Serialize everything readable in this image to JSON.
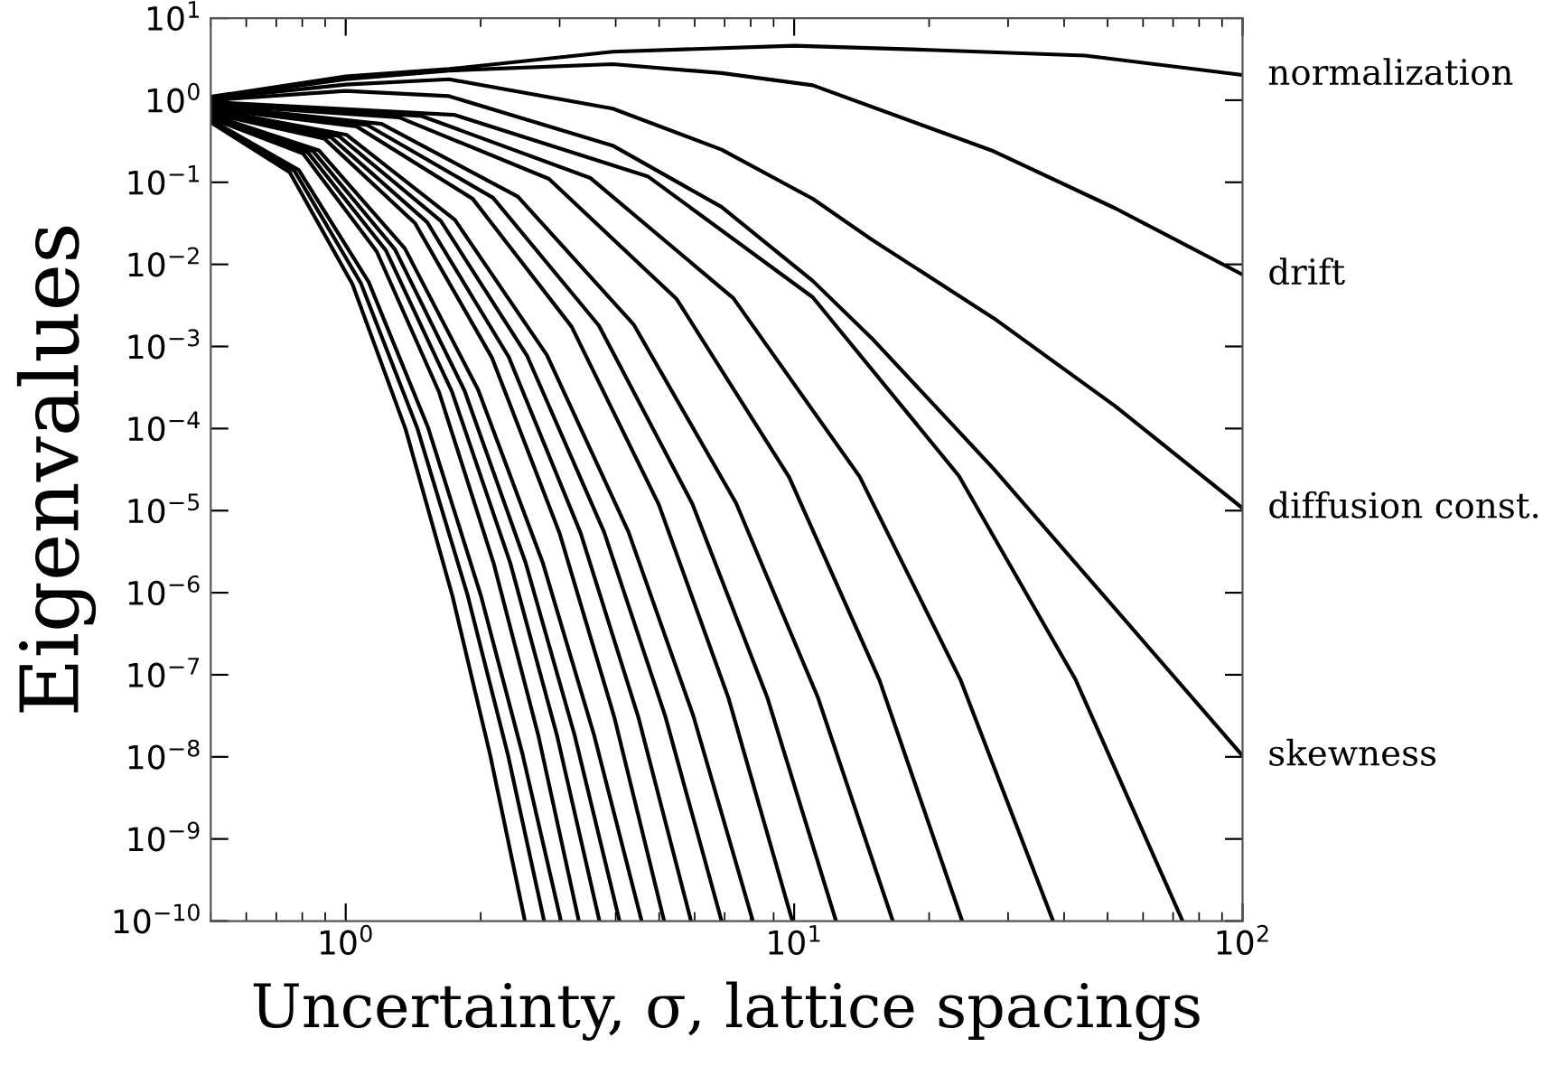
{
  "chart_data": {
    "type": "line",
    "xlabel": "Uncertainty, σ, lattice spacings",
    "ylabel": "Eigenvalues",
    "log": "xy",
    "xlim": [
      0.5,
      100
    ],
    "xticks": [
      {
        "value": 1,
        "label": "10$^{0}$"
      },
      {
        "value": 10,
        "label": "10$^{1}$"
      },
      {
        "value": 100,
        "label": "10$^{2}$"
      }
    ],
    "ylim": [
      1e-10,
      10
    ],
    "yticks": [
      {
        "value": 1e-10,
        "label": "10$^{−10}$"
      },
      {
        "value": 1e-09,
        "label": "10$^{−9}$"
      },
      {
        "value": 1e-08,
        "label": "10$^{−8}$"
      },
      {
        "value": 1e-07,
        "label": "10$^{−7}$"
      },
      {
        "value": 1e-06,
        "label": "10$^{−6}$"
      },
      {
        "value": 1e-05,
        "label": "10$^{−5}$"
      },
      {
        "value": 0.0001,
        "label": "10$^{−4}$"
      },
      {
        "value": 0.001,
        "label": "10$^{−3}$"
      },
      {
        "value": 0.01,
        "label": "10$^{−2}$"
      },
      {
        "value": 0.1,
        "label": "10$^{−1}$"
      },
      {
        "value": 1,
        "label": "10$^{0}$"
      },
      {
        "value": 10,
        "label": "10$^{1}$"
      }
    ],
    "line_style": "solid",
    "marker": "none",
    "legend": "right",
    "series": [
      {
        "name": "normalization",
        "color": "#000000",
        "x": [
          0.5,
          1,
          1.7,
          3.94,
          10,
          20,
          44.5,
          100
        ],
        "values": [
          1.1,
          1.95,
          2.4,
          3.9,
          4.6,
          4.1,
          3.5,
          2.03
        ]
      },
      {
        "name": "drift",
        "color": "#000000",
        "x": [
          0.5,
          1,
          1.7,
          3.94,
          6.89,
          11,
          27.9,
          52.1,
          100
        ],
        "values": [
          1.08,
          1.8,
          2.3,
          2.75,
          2.14,
          1.52,
          0.238,
          0.048,
          0.0075
        ]
      },
      {
        "name": "diffusion const.",
        "color": "#000000",
        "x": [
          0.5,
          1,
          1.7,
          3.94,
          6.89,
          11,
          14.9,
          27.9,
          52.1,
          100
        ],
        "values": [
          1.05,
          1.55,
          1.8,
          0.79,
          0.25,
          0.063,
          0.02,
          0.0022,
          0.000186,
          1.07e-05
        ]
      },
      {
        "name": "skewness",
        "color": "#000000",
        "x": [
          0.5,
          1,
          1.7,
          3.94,
          6.89,
          11,
          14.9,
          27.9,
          52.1,
          100
        ],
        "values": [
          1.0,
          1.3,
          1.12,
          0.28,
          0.05,
          0.0063,
          0.00126,
          3.2e-05,
          6.3e-07,
          1.03e-08
        ]
      },
      {
        "color": "#000000",
        "x": [
          0.5,
          1.744,
          4.73,
          11.0,
          23.3,
          42.4,
          73.5
        ],
        "values": [
          0.95,
          0.664,
          0.117,
          0.00398,
          2.65e-05,
          8.79e-08,
          1e-10
        ]
      },
      {
        "color": "#000000",
        "x": [
          0.5,
          1.477,
          3.51,
          7.32,
          14.0,
          23.5,
          37.8
        ],
        "values": [
          0.917,
          0.641,
          0.113,
          0.00387,
          2.59e-05,
          8.67e-08,
          1e-10
        ]
      },
      {
        "color": "#000000",
        "x": [
          0.5,
          1.314,
          2.84,
          5.47,
          9.75,
          15.5,
          23.7
        ],
        "values": [
          0.885,
          0.619,
          0.11,
          0.00378,
          2.55e-05,
          8.6e-08,
          1e-10
        ]
      },
      {
        "color": "#000000",
        "x": [
          0.5,
          1.202,
          2.42,
          4.39,
          7.42,
          11.3,
          16.6
        ],
        "values": [
          0.853,
          0.515,
          0.067,
          0.00184,
          1.24e-05,
          5.28e-08,
          1e-10
        ]
      },
      {
        "color": "#000000",
        "x": [
          0.5,
          1.118,
          2.13,
          3.67,
          5.93,
          8.72,
          12.4
        ],
        "values": [
          0.824,
          0.498,
          0.0649,
          0.00179,
          1.21e-05,
          5.22e-08,
          1e-10
        ]
      },
      {
        "color": "#000000",
        "x": [
          0.5,
          1.057,
          1.92,
          3.19,
          4.99,
          7.14,
          9.91
        ],
        "values": [
          0.794,
          0.48,
          0.0628,
          0.00174,
          1.19e-05,
          5.18e-08,
          1e-10
        ]
      },
      {
        "color": "#000000",
        "x": [
          0.5,
          1.005,
          1.752,
          2.81,
          4.27,
          5.96,
          8.09
        ],
        "values": [
          0.767,
          0.378,
          0.0348,
          0.000782,
          5.53e-06,
          3.15e-08,
          1e-10
        ]
      },
      {
        "color": "#000000",
        "x": [
          0.5,
          0.965,
          1.63,
          2.54,
          3.77,
          5.16,
          6.89
        ],
        "values": [
          0.741,
          0.365,
          0.0338,
          0.000762,
          5.45e-06,
          3.12e-08,
          1e-10
        ]
      },
      {
        "color": "#000000",
        "x": [
          0.5,
          0.928,
          1.519,
          2.31,
          3.34,
          4.49,
          5.89
        ],
        "values": [
          0.714,
          0.352,
          0.0327,
          0.000743,
          5.35e-06,
          3.09e-08,
          1e-10
        ]
      },
      {
        "color": "#000000",
        "x": [
          0.5,
          0.896,
          1.427,
          2.12,
          3.0,
          3.97,
          5.13
        ],
        "values": [
          0.692,
          0.341,
          0.0318,
          0.000726,
          5.26e-06,
          3.07e-08,
          1e-10
        ]
      },
      {
        "color": "#000000",
        "x": [
          0.5,
          0.871,
          1.355,
          1.974,
          2.75,
          3.58,
          4.57
        ],
        "values": [
          0.665,
          0.245,
          0.0156,
          0.000296,
          2.33e-06,
          1.84e-08,
          1e-10
        ]
      },
      {
        "color": "#000000",
        "x": [
          0.5,
          0.847,
          1.288,
          1.84,
          2.52,
          3.24,
          4.08
        ],
        "values": [
          0.646,
          0.238,
          0.0152,
          0.000291,
          2.3e-06,
          1.83e-08,
          1e-10
        ]
      },
      {
        "color": "#000000",
        "x": [
          0.5,
          0.825,
          1.229,
          1.725,
          2.33,
          2.96,
          3.68
        ],
        "values": [
          0.619,
          0.229,
          0.0148,
          0.000283,
          2.26e-06,
          1.81e-08,
          1e-10
        ]
      },
      {
        "color": "#000000",
        "x": [
          0.5,
          0.804,
          1.172,
          1.615,
          2.14,
          2.69,
          3.31
        ],
        "values": [
          0.603,
          0.223,
          0.0144,
          0.000278,
          2.23e-06,
          1.8e-08,
          1e-10
        ]
      },
      {
        "color": "#000000",
        "x": [
          0.5,
          0.785,
          1.125,
          1.527,
          2.0,
          2.48,
          3.02
        ],
        "values": [
          0.577,
          0.142,
          0.0061,
          0.000102,
          9.4e-07,
          1.07e-08,
          1e-10
        ]
      },
      {
        "color": "#000000",
        "x": [
          0.5,
          0.769,
          1.081,
          1.445,
          1.87,
          2.3,
          2.77
        ],
        "values": [
          0.556,
          0.137,
          0.0059,
          0.0001,
          9.3e-07,
          1.06e-08,
          1e-10
        ]
      },
      {
        "color": "#000000",
        "x": [
          0.5,
          0.75,
          1.035,
          1.36,
          1.73,
          2.1,
          2.51
        ],
        "values": [
          0.537,
          0.132,
          0.00575,
          9.8e-05,
          9.1e-07,
          1.05e-08,
          1e-10
        ]
      }
    ]
  }
}
